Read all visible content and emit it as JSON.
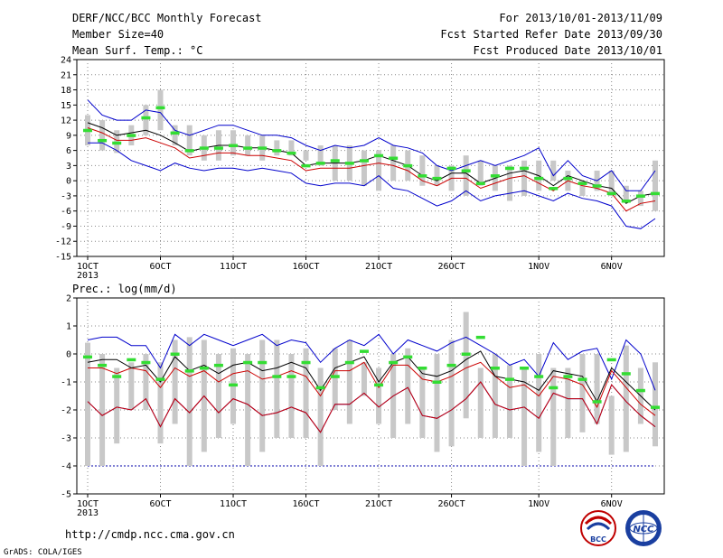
{
  "header": {
    "title": "DERF/NCC/BCC Monthly Forecast",
    "member_size": "Member Size=40",
    "variable": "Mean Surf. Temp.: °C",
    "period": "For 2013/10/01-2013/11/09",
    "fcst_started": "Fcst Started Refer Date 2013/09/30",
    "fcst_produced": "Fcst Produced Date 2013/10/01"
  },
  "footer": {
    "url": "http://cmdp.ncc.cma.gov.cn",
    "grads": "GrADS: COLA/IGES",
    "bcc_logo": "BCC",
    "ncc_logo": "NCC"
  },
  "colors": {
    "box": "#c8c8c8",
    "median": "#000000",
    "max": "#0000cc",
    "min": "#cc0000",
    "ensemble_mean": "#33dd33",
    "grid": "#888888"
  },
  "chart_data": [
    {
      "type": "box",
      "ylabel": "Mean Surf. Temp.: °C",
      "ylim": [
        -15,
        24
      ],
      "yticks": [
        -15,
        -12,
        -9,
        -6,
        -3,
        0,
        3,
        6,
        9,
        12,
        15,
        18,
        21,
        24
      ],
      "xticks": [
        "1OCT",
        "6OCT",
        "11OCT",
        "16OCT",
        "21OCT",
        "26OCT",
        "1NOV",
        "6NOV"
      ],
      "xtick_year": "2013",
      "grid": true,
      "days": 40,
      "box_low": [
        7,
        6,
        5.5,
        7,
        9,
        10,
        7,
        5,
        4,
        4,
        5,
        5,
        4,
        5,
        5,
        4,
        3,
        0,
        0,
        -1,
        -2,
        0,
        0,
        -1,
        -1,
        -2,
        -3,
        -1,
        -2,
        -4,
        -3,
        -2,
        0,
        -2,
        -3,
        -2,
        -3,
        -4,
        -5,
        -6
      ],
      "box_high": [
        13,
        12,
        10,
        11,
        15,
        18,
        11,
        11,
        9,
        10,
        10,
        9,
        9,
        8,
        8,
        6,
        7,
        7,
        7,
        6,
        6,
        7,
        6,
        5,
        3,
        3,
        5,
        4,
        3,
        3,
        4,
        4,
        4,
        2,
        0,
        2,
        2,
        -1,
        -2,
        4
      ],
      "max_line": [
        16,
        13,
        12,
        12,
        14,
        13.5,
        10,
        9,
        10,
        11,
        11,
        10,
        9,
        9,
        8.5,
        7,
        6,
        7,
        6.5,
        7,
        8.5,
        7,
        6.5,
        5.5,
        3,
        2,
        3,
        4,
        3,
        4,
        5,
        6.5,
        1,
        4,
        1,
        0,
        2,
        -2,
        -2,
        2
      ],
      "median_line": [
        11.5,
        10.5,
        9,
        9.5,
        10,
        9,
        7.5,
        5.8,
        6.5,
        7,
        7,
        6.5,
        6.5,
        6,
        5.5,
        3,
        3.5,
        3.5,
        3.5,
        4,
        5,
        4,
        3,
        1,
        0,
        1.5,
        1.5,
        -0.5,
        0.5,
        1.5,
        2,
        1,
        -1,
        1,
        0,
        -1,
        -1.5,
        -4.5,
        -3,
        -2.5
      ],
      "min_line": [
        10.5,
        9.5,
        8,
        8,
        8.5,
        7.5,
        6.5,
        4.5,
        5,
        5.5,
        5.5,
        5,
        5,
        4.5,
        4,
        2,
        2.5,
        2.5,
        2.5,
        3,
        3.5,
        3,
        2,
        0,
        -1,
        0.5,
        0.5,
        -1.5,
        -0.5,
        0.5,
        1,
        -0.5,
        -2,
        0,
        -1,
        -1.5,
        -2.5,
        -6,
        -4.5,
        -4
      ],
      "lowest_line": [
        7.5,
        7.5,
        6,
        4,
        3,
        2,
        3.5,
        2.5,
        2,
        2.5,
        2.5,
        2,
        2.5,
        2,
        1.5,
        -0.5,
        -1,
        -0.5,
        -0.5,
        -1,
        1,
        -1.5,
        -2,
        -3.5,
        -5,
        -4,
        -2,
        -4,
        -3,
        -2.5,
        -2,
        -3,
        -4,
        -2.5,
        -3.5,
        -4,
        -5,
        -9,
        -9.5,
        -7.5
      ],
      "ensemble_mean": [
        10,
        8,
        7.5,
        9,
        12.5,
        14.5,
        9.5,
        6,
        6.5,
        6.5,
        7,
        6.5,
        6.5,
        6,
        5.5,
        3,
        3.5,
        4,
        3.5,
        4,
        5,
        4.5,
        3,
        1,
        0.5,
        2.5,
        2,
        -0.5,
        1,
        2.5,
        2.5,
        0.5,
        -1.5,
        0.5,
        -0.5,
        -1,
        -2.5,
        -4,
        -3,
        -2.5
      ]
    },
    {
      "type": "box",
      "ylabel": "Prec.: log(mm/d)",
      "ylim": [
        -5,
        2
      ],
      "yticks": [
        -5,
        -4,
        -3,
        -2,
        -1,
        0,
        1,
        2
      ],
      "xticks": [
        "1OCT",
        "6OCT",
        "11OCT",
        "16OCT",
        "21OCT",
        "26OCT",
        "1NOV",
        "6NOV"
      ],
      "xtick_year": "2013",
      "grid": true,
      "days": 40,
      "floor_line": -4,
      "box_low": [
        -4,
        -4,
        -3.2,
        -2,
        -2,
        -3.2,
        -2.5,
        -4,
        -3.5,
        -3,
        -2.5,
        -4,
        -3.5,
        -3,
        -3,
        -3,
        -4,
        -2,
        -2.5,
        -1.5,
        -2.5,
        -3,
        -2.5,
        -3,
        -3.5,
        -3.3,
        -2.3,
        -3,
        -3,
        -3,
        -4,
        -3.5,
        -4,
        -3,
        -2.8,
        -2.5,
        -3.6,
        -3.5,
        -2.5,
        -3.3
      ],
      "box_high": [
        0.4,
        0,
        -0.5,
        -0.3,
        0,
        -0.3,
        0.5,
        0.6,
        0.5,
        0,
        0.2,
        0,
        0.5,
        0.5,
        0,
        0.2,
        -0.5,
        0.2,
        0.5,
        -0.3,
        -0.5,
        0,
        0.2,
        -0.5,
        0,
        0.5,
        1.5,
        -0.5,
        0,
        -0.4,
        -0.5,
        0,
        -0.5,
        -0.5,
        0,
        0,
        -1.5,
        0.3,
        -0.5,
        -0.3
      ],
      "max_line": [
        0.5,
        0.6,
        0.6,
        0.3,
        0.3,
        -0.5,
        0.7,
        0.3,
        0.7,
        0.5,
        0.3,
        0.5,
        0.7,
        0.3,
        0.5,
        0.4,
        -0.3,
        0.2,
        0.5,
        0.3,
        0.7,
        0,
        0.5,
        0.3,
        0.1,
        0.4,
        0.6,
        0.3,
        0,
        -0.4,
        -0.2,
        -0.8,
        0.4,
        -0.2,
        0.1,
        0.2,
        -0.9,
        0.5,
        0,
        -1.3
      ],
      "median_line": [
        -0.3,
        -0.2,
        -0.2,
        -0.5,
        -0.4,
        -1,
        -0.1,
        -0.6,
        -0.4,
        -0.7,
        -0.4,
        -0.3,
        -0.6,
        -0.5,
        -0.3,
        -0.5,
        -1.3,
        -0.5,
        -0.3,
        -0.1,
        -1,
        -0.3,
        -0.1,
        -0.7,
        -0.8,
        -0.6,
        -0.2,
        0.1,
        -0.8,
        -0.9,
        -1,
        -1.3,
        -0.6,
        -0.7,
        -0.8,
        -1.7,
        -0.5,
        -1,
        -1.5,
        -2
      ],
      "min_line": [
        -0.5,
        -0.5,
        -0.7,
        -0.5,
        -0.6,
        -1.2,
        -0.5,
        -0.8,
        -0.6,
        -1,
        -0.7,
        -0.6,
        -0.9,
        -0.8,
        -0.6,
        -0.8,
        -1.5,
        -0.6,
        -0.6,
        -0.3,
        -1.2,
        -0.4,
        -0.4,
        -0.9,
        -1,
        -0.8,
        -0.5,
        -0.3,
        -0.8,
        -1.2,
        -1.1,
        -1.5,
        -0.8,
        -0.9,
        -1.1,
        -1.9,
        -0.6,
        -1.2,
        -1.8,
        -2.2
      ],
      "lowest_line": [
        -1.7,
        -2.2,
        -1.9,
        -2,
        -1.6,
        -2.6,
        -1.6,
        -2.1,
        -1.5,
        -2.1,
        -1.6,
        -1.8,
        -2.2,
        -2.1,
        -1.9,
        -2.1,
        -2.8,
        -1.8,
        -1.8,
        -1.4,
        -1.9,
        -1.5,
        -1.2,
        -2.2,
        -2.3,
        -2,
        -1.6,
        -1,
        -1.8,
        -2,
        -1.9,
        -2.3,
        -1.4,
        -1.6,
        -1.6,
        -2.5,
        -1.1,
        -1.7,
        -2.2,
        -2.6
      ],
      "ensemble_mean": [
        -0.1,
        -0.4,
        -0.8,
        -0.2,
        -0.3,
        -0.9,
        0,
        -0.6,
        -0.5,
        -0.4,
        -1.1,
        -0.3,
        -0.3,
        -0.8,
        -0.8,
        -0.3,
        -1.2,
        -0.8,
        -0.3,
        0.1,
        -1.1,
        -0.3,
        -0.1,
        -0.5,
        -1,
        -0.4,
        0,
        0.6,
        -0.5,
        -0.9,
        -0.5,
        -0.8,
        -1.2,
        -0.8,
        -0.9,
        -1.7,
        -0.2,
        -0.7,
        -1.3,
        -1.9
      ]
    }
  ]
}
